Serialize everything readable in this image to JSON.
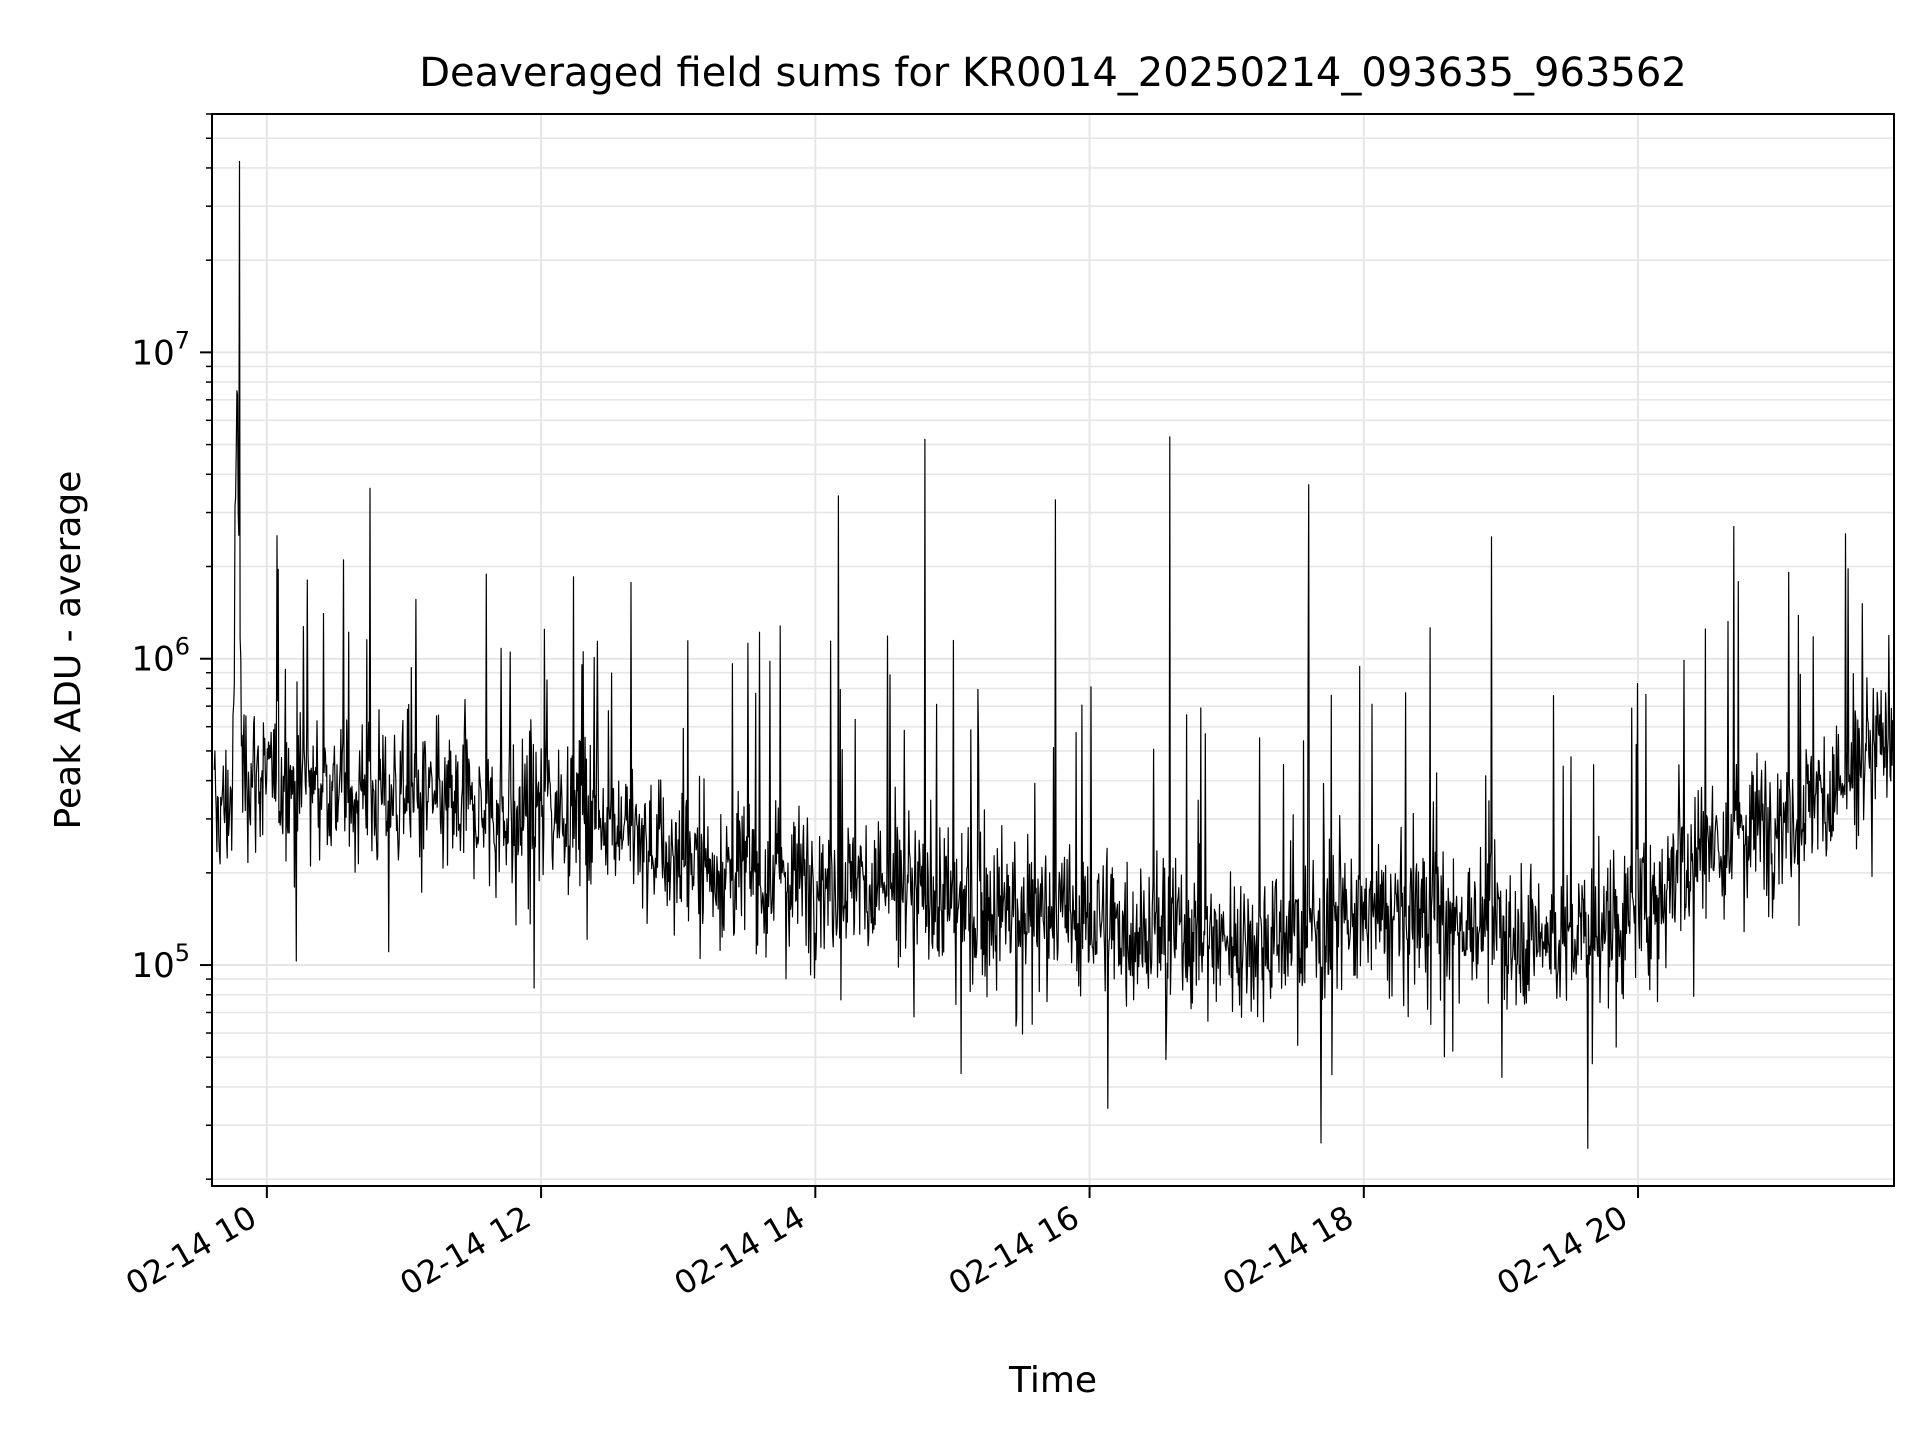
{
  "chart_data": {
    "type": "line",
    "title": "Deaveraged field sums for KR0014_20250214_093635_963562",
    "xlabel": "Time",
    "ylabel": "Peak ADU - average",
    "x_scale": "time",
    "y_scale": "log",
    "xlim": [
      "2025-02-14T09:36",
      "2025-02-14T21:52"
    ],
    "ylim": [
      19000,
      60000000
    ],
    "x_ticks": [
      {
        "value": "2025-02-14T10:00",
        "label": "02-14 10"
      },
      {
        "value": "2025-02-14T12:00",
        "label": "02-14 12"
      },
      {
        "value": "2025-02-14T14:00",
        "label": "02-14 14"
      },
      {
        "value": "2025-02-14T16:00",
        "label": "02-14 16"
      },
      {
        "value": "2025-02-14T18:00",
        "label": "02-14 18"
      },
      {
        "value": "2025-02-14T20:00",
        "label": "02-14 20"
      }
    ],
    "y_ticks": [
      {
        "value": 100000,
        "label": "10",
        "exponent": "5"
      },
      {
        "value": 1000000,
        "label": "10",
        "exponent": "6"
      },
      {
        "value": 10000000,
        "label": "10",
        "exponent": "7"
      }
    ],
    "grid": true,
    "legend": "none",
    "colors": {
      "line": "#000000",
      "grid": "#e6e6e6",
      "axes": "#000000"
    },
    "series": [
      {
        "x": [
          "2025-02-14T09:37",
          "2025-02-14T09:45",
          "2025-02-14T09:47",
          "2025-02-14T09:48",
          "2025-02-14T09:49",
          "2025-02-14T10:00",
          "2025-02-14T10:30",
          "2025-02-14T10:45",
          "2025-02-14T11:00",
          "2025-02-14T11:30",
          "2025-02-14T11:45",
          "2025-02-14T12:00",
          "2025-02-14T12:30",
          "2025-02-14T13:00",
          "2025-02-14T13:30",
          "2025-02-14T13:59",
          "2025-02-14T14:10",
          "2025-02-14T14:30",
          "2025-02-14T14:48",
          "2025-02-14T15:00",
          "2025-02-14T15:30",
          "2025-02-14T15:45",
          "2025-02-14T16:00",
          "2025-02-14T16:30",
          "2025-02-14T16:35",
          "2025-02-14T17:00",
          "2025-02-14T17:30",
          "2025-02-14T17:36",
          "2025-02-14T18:00",
          "2025-02-14T18:30",
          "2025-02-14T18:56",
          "2025-02-14T19:00",
          "2025-02-14T19:30",
          "2025-02-14T20:00",
          "2025-02-14T20:30",
          "2025-02-14T20:42",
          "2025-02-14T21:00",
          "2025-02-14T21:30",
          "2025-02-14T21:52"
        ],
        "y": [
          300000,
          350000,
          7500000,
          42000000,
          450000,
          400000,
          380000,
          3600000,
          350000,
          320000,
          300000,
          350000,
          300000,
          220000,
          200000,
          190000,
          3400000,
          180000,
          5200000,
          160000,
          150000,
          3300000,
          140000,
          130000,
          5300000,
          120000,
          125000,
          3700000,
          140000,
          150000,
          2500000,
          130000,
          120000,
          150000,
          250000,
          2700000,
          300000,
          380000,
          600000
        ]
      }
    ]
  }
}
